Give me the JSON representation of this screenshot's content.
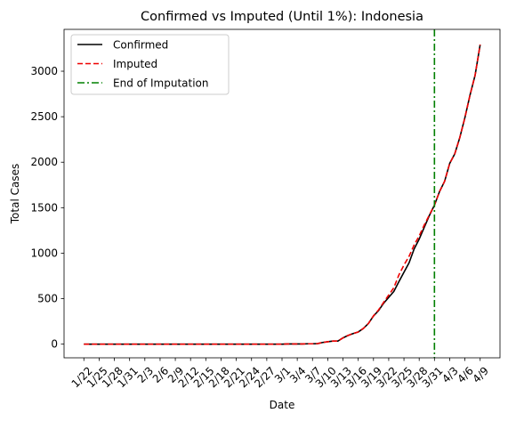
{
  "chart_data": {
    "type": "line",
    "title": "Confirmed vs Imputed (Until 1%): Indonesia",
    "xlabel": "Date",
    "ylabel": "Total Cases",
    "x": [
      "1/22",
      "1/23",
      "1/24",
      "1/25",
      "1/26",
      "1/27",
      "1/28",
      "1/29",
      "1/30",
      "1/31",
      "2/1",
      "2/2",
      "2/3",
      "2/4",
      "2/5",
      "2/6",
      "2/7",
      "2/8",
      "2/9",
      "2/10",
      "2/11",
      "2/12",
      "2/13",
      "2/14",
      "2/15",
      "2/16",
      "2/17",
      "2/18",
      "2/19",
      "2/20",
      "2/21",
      "2/22",
      "2/23",
      "2/24",
      "2/25",
      "2/26",
      "2/27",
      "2/28",
      "2/29",
      "3/1",
      "3/2",
      "3/3",
      "3/4",
      "3/5",
      "3/6",
      "3/7",
      "3/8",
      "3/9",
      "3/10",
      "3/11",
      "3/12",
      "3/13",
      "3/14",
      "3/15",
      "3/16",
      "3/17",
      "3/18",
      "3/19",
      "3/20",
      "3/21",
      "3/22",
      "3/23",
      "3/24",
      "3/25",
      "3/26",
      "3/27",
      "3/28",
      "3/29",
      "3/30",
      "3/31",
      "4/1",
      "4/2",
      "4/3",
      "4/4",
      "4/5",
      "4/6",
      "4/7",
      "4/8",
      "4/9"
    ],
    "x_ticks": [
      "1/22",
      "1/25",
      "1/28",
      "1/31",
      "2/3",
      "2/6",
      "2/9",
      "2/12",
      "2/15",
      "2/18",
      "2/21",
      "2/24",
      "2/27",
      "3/1",
      "3/4",
      "3/7",
      "3/10",
      "3/13",
      "3/16",
      "3/19",
      "3/22",
      "3/25",
      "3/28",
      "3/31",
      "4/3",
      "4/6",
      "4/9"
    ],
    "ylim": [
      -150,
      3460
    ],
    "y_ticks": [
      0,
      500,
      1000,
      1500,
      2000,
      2500,
      3000
    ],
    "series": [
      {
        "name": "Confirmed",
        "color": "#000000",
        "style": "solid",
        "values": [
          0,
          0,
          0,
          0,
          0,
          0,
          0,
          0,
          0,
          0,
          0,
          0,
          0,
          0,
          0,
          0,
          0,
          0,
          0,
          0,
          0,
          0,
          0,
          0,
          0,
          0,
          0,
          0,
          0,
          0,
          0,
          0,
          0,
          0,
          0,
          0,
          0,
          0,
          0,
          0,
          2,
          2,
          2,
          2,
          4,
          4,
          6,
          19,
          27,
          34,
          34,
          69,
          96,
          117,
          134,
          172,
          227,
          309,
          369,
          450,
          514,
          579,
          686,
          790,
          893,
          1046,
          1155,
          1285,
          1414,
          1528,
          1677,
          1790,
          1986,
          2092,
          2273,
          2491,
          2738,
          2956,
          3293
        ]
      },
      {
        "name": "Imputed",
        "color": "#ee0000",
        "style": "dashed",
        "values": [
          0,
          0,
          0,
          0,
          0,
          0,
          0,
          0,
          0,
          0,
          0,
          0,
          0,
          0,
          0,
          0,
          0,
          0,
          0,
          0,
          0,
          0,
          0,
          0,
          0,
          0,
          0,
          0,
          0,
          0,
          0,
          0,
          0,
          0,
          0,
          0,
          0,
          0,
          0,
          0,
          2,
          2,
          2,
          2,
          4,
          4,
          6,
          19,
          27,
          34,
          34,
          69,
          96,
          117,
          134,
          172,
          227,
          312,
          376,
          460,
          540,
          620,
          760,
          870,
          965,
          1090,
          1190,
          1310,
          1420,
          1528,
          1677,
          1790,
          1986,
          2092,
          2273,
          2491,
          2738,
          2956,
          3293
        ]
      }
    ],
    "vline": {
      "name": "End of Imputation",
      "x": "3/31",
      "color": "#008000",
      "style": "dashdot"
    },
    "legend": {
      "placement": "top-left"
    },
    "grid": false
  }
}
